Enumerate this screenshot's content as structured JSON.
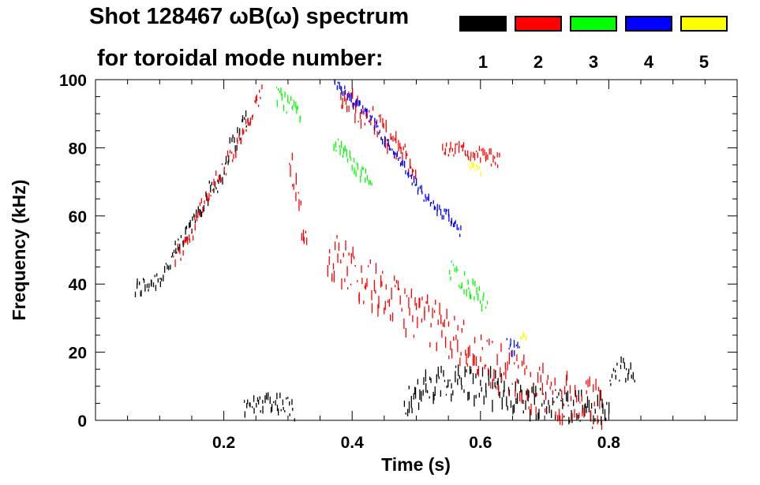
{
  "title_line1": "Shot 128467 ωB(ω) spectrum",
  "title_line2": "for toroidal mode number:",
  "legend": [
    {
      "label": "1",
      "color": "#000000"
    },
    {
      "label": "2",
      "color": "#ff0000"
    },
    {
      "label": "3",
      "color": "#00ff00"
    },
    {
      "label": "4",
      "color": "#0000ff"
    },
    {
      "label": "5",
      "color": "#ffff00"
    }
  ],
  "chart_data": {
    "type": "scatter",
    "title": "Shot 128467 ωB(ω) spectrum for toroidal mode number",
    "xlabel": "Time (s)",
    "ylabel": "Frequency (kHz)",
    "xlim": [
      0.0,
      1.0
    ],
    "ylim": [
      0,
      100
    ],
    "xticks": [
      0.2,
      0.4,
      0.6,
      0.8
    ],
    "yticks": [
      0,
      20,
      40,
      60,
      80,
      100
    ],
    "series": [
      {
        "name": "n=1",
        "color": "#000000",
        "segments": [
          {
            "x": [
              0.06,
              0.08,
              0.1,
              0.12,
              0.14,
              0.16,
              0.18,
              0.2
            ],
            "y": [
              38,
              40,
              42,
              48,
              54,
              62,
              68,
              72
            ],
            "spread": 3
          },
          {
            "x": [
              0.2,
              0.21,
              0.22,
              0.23,
              0.24
            ],
            "y": [
              76,
              80,
              83,
              87,
              90
            ],
            "spread": 3
          },
          {
            "x": [
              0.23,
              0.25,
              0.27,
              0.29,
              0.31
            ],
            "y": [
              3,
              5,
              6,
              5,
              3
            ],
            "spread": 3
          },
          {
            "x": [
              0.48,
              0.52,
              0.56,
              0.6,
              0.64,
              0.68,
              0.72,
              0.76,
              0.8
            ],
            "y": [
              6,
              9,
              12,
              10,
              8,
              6,
              5,
              4,
              2
            ],
            "spread": 5
          },
          {
            "x": [
              0.8,
              0.81,
              0.82,
              0.83,
              0.84
            ],
            "y": [
              12,
              14,
              15,
              14,
              12
            ],
            "spread": 3
          }
        ]
      },
      {
        "name": "n=2",
        "color": "#ff0000",
        "segments": [
          {
            "x": [
              0.12,
              0.14,
              0.16,
              0.18,
              0.2,
              0.22,
              0.24,
              0.26
            ],
            "y": [
              47,
              52,
              60,
              68,
              74,
              80,
              88,
              96
            ],
            "spread": 3
          },
          {
            "x": [
              0.3,
              0.31,
              0.32,
              0.33
            ],
            "y": [
              78,
              72,
              60,
              50
            ],
            "spread": 6
          },
          {
            "x": [
              0.36,
              0.4,
              0.44,
              0.48,
              0.52,
              0.56,
              0.6,
              0.64,
              0.68,
              0.72,
              0.76,
              0.79
            ],
            "y": [
              50,
              44,
              38,
              33,
              29,
              24,
              19,
              14,
              10,
              7,
              5,
              4
            ],
            "spread": 7
          },
          {
            "x": [
              0.38,
              0.42,
              0.46,
              0.5
            ],
            "y": [
              95,
              90,
              82,
              74
            ],
            "spread": 4
          },
          {
            "x": [
              0.54,
              0.57,
              0.6,
              0.63
            ],
            "y": [
              80,
              79,
              78,
              76
            ],
            "spread": 2
          }
        ]
      },
      {
        "name": "n=3",
        "color": "#00ff00",
        "segments": [
          {
            "x": [
              0.37,
              0.39,
              0.41,
              0.43
            ],
            "y": [
              82,
              78,
              73,
              70
            ],
            "spread": 2
          },
          {
            "x": [
              0.55,
              0.57,
              0.59,
              0.61
            ],
            "y": [
              45,
              41,
              38,
              34
            ],
            "spread": 3
          },
          {
            "x": [
              0.28,
              0.3,
              0.32
            ],
            "y": [
              95,
              92,
              90
            ],
            "spread": 3
          }
        ]
      },
      {
        "name": "n=4",
        "color": "#0000ff",
        "segments": [
          {
            "x": [
              0.37,
              0.39,
              0.41,
              0.43,
              0.45,
              0.47,
              0.49,
              0.51,
              0.53,
              0.55,
              0.57
            ],
            "y": [
              100,
              96,
              92,
              88,
              82,
              77,
              71,
              66,
              62,
              60,
              55
            ],
            "spread": 1.5
          },
          {
            "x": [
              0.64,
              0.66
            ],
            "y": [
              22,
              20
            ],
            "spread": 2
          }
        ]
      },
      {
        "name": "n=5",
        "color": "#ffff00",
        "segments": [
          {
            "x": [
              0.58,
              0.6
            ],
            "y": [
              75,
              73
            ],
            "spread": 1
          },
          {
            "x": [
              0.66,
              0.67
            ],
            "y": [
              25,
              24
            ],
            "spread": 1
          }
        ]
      }
    ]
  }
}
